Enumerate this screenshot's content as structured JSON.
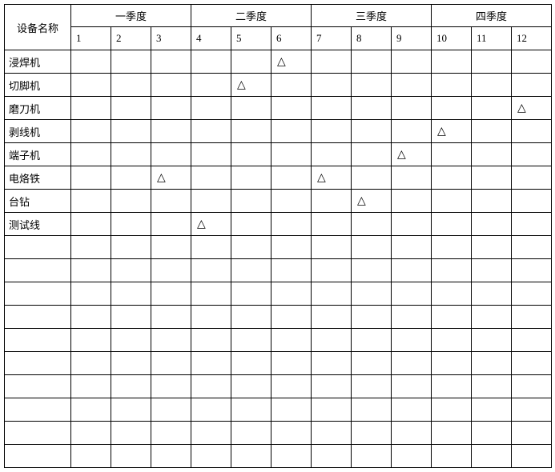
{
  "header": {
    "name_label": "设备名称",
    "quarters": [
      "一季度",
      "二季度",
      "三季度",
      "四季度"
    ],
    "months": [
      "1",
      "2",
      "3",
      "4",
      "5",
      "6",
      "7",
      "8",
      "9",
      "10",
      "11",
      "12"
    ]
  },
  "mark_symbol": "△",
  "rows": [
    {
      "name": "浸焊机",
      "marks": [
        6
      ]
    },
    {
      "name": "切脚机",
      "marks": [
        5
      ]
    },
    {
      "name": "磨刀机",
      "marks": [
        12
      ]
    },
    {
      "name": "剥线机",
      "marks": [
        10
      ]
    },
    {
      "name": "端子机",
      "marks": [
        9
      ]
    },
    {
      "name": "电烙铁",
      "marks": [
        3,
        7
      ]
    },
    {
      "name": "台钻",
      "marks": [
        8
      ]
    },
    {
      "name": "测试线",
      "marks": [
        4
      ]
    },
    {
      "name": "",
      "marks": []
    },
    {
      "name": "",
      "marks": []
    },
    {
      "name": "",
      "marks": []
    },
    {
      "name": "",
      "marks": []
    },
    {
      "name": "",
      "marks": []
    },
    {
      "name": "",
      "marks": []
    },
    {
      "name": "",
      "marks": []
    },
    {
      "name": "",
      "marks": []
    },
    {
      "name": "",
      "marks": []
    },
    {
      "name": "",
      "marks": []
    }
  ]
}
